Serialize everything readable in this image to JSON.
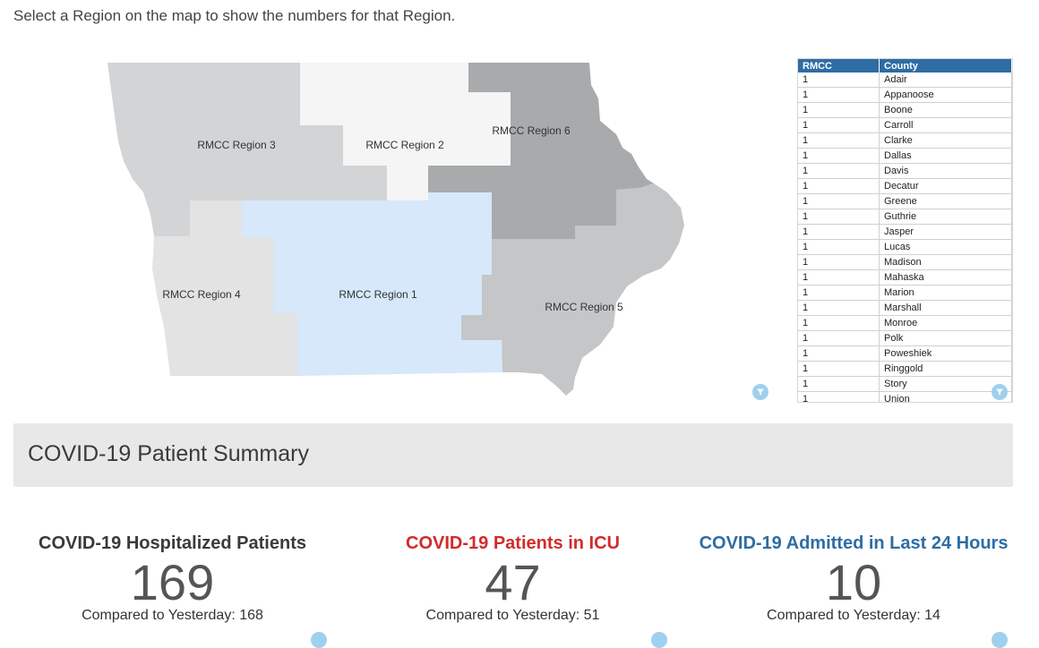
{
  "instruction": "Select a Region on the map to show the numbers for that Region.",
  "map": {
    "regions": [
      {
        "label": "RMCC Region 3",
        "color": "#d3d4d6"
      },
      {
        "label": "RMCC Region 2",
        "color": "#f4f5f4"
      },
      {
        "label": "RMCC Region 6",
        "color": "#a9aaac"
      },
      {
        "label": "RMCC Region 4",
        "color": "#e3e3e4"
      },
      {
        "label": "RMCC Region 1",
        "color": "#d6e8fa"
      },
      {
        "label": "RMCC Region 5",
        "color": "#c5c6c8"
      }
    ]
  },
  "table": {
    "headers": [
      "RMCC",
      "County"
    ],
    "header_color": "#2e6da4",
    "rows": [
      [
        "1",
        "Adair"
      ],
      [
        "1",
        "Appanoose"
      ],
      [
        "1",
        "Boone"
      ],
      [
        "1",
        "Carroll"
      ],
      [
        "1",
        "Clarke"
      ],
      [
        "1",
        "Dallas"
      ],
      [
        "1",
        "Davis"
      ],
      [
        "1",
        "Decatur"
      ],
      [
        "1",
        "Greene"
      ],
      [
        "1",
        "Guthrie"
      ],
      [
        "1",
        "Jasper"
      ],
      [
        "1",
        "Lucas"
      ],
      [
        "1",
        "Madison"
      ],
      [
        "1",
        "Mahaska"
      ],
      [
        "1",
        "Marion"
      ],
      [
        "1",
        "Marshall"
      ],
      [
        "1",
        "Monroe"
      ],
      [
        "1",
        "Polk"
      ],
      [
        "1",
        "Poweshiek"
      ],
      [
        "1",
        "Ringgold"
      ],
      [
        "1",
        "Story"
      ],
      [
        "1",
        "Union"
      ]
    ]
  },
  "summary": {
    "title": "COVID-19 Patient Summary"
  },
  "kpis": [
    {
      "title": "COVID-19 Hospitalized Patients",
      "value": "169",
      "compare": "Compared to Yesterday: 168",
      "color": "#3a3a3a"
    },
    {
      "title": "COVID-19 Patients in ICU",
      "value": "47",
      "compare": "Compared to Yesterday: 51",
      "color": "#d22b2b"
    },
    {
      "title": "COVID-19 Admitted in Last 24 Hours",
      "value": "10",
      "compare": "Compared to Yesterday: 14",
      "color": "#2e6da4"
    }
  ]
}
